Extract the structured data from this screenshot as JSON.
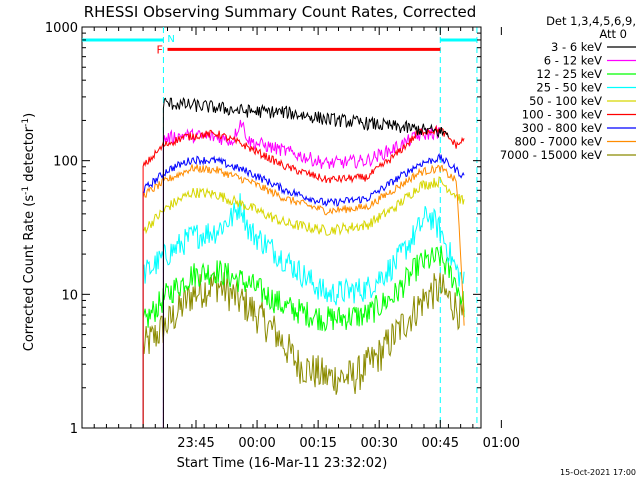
{
  "chart_data": {
    "type": "line",
    "title": "RHESSI Observing Summary Count Rates, Corrected",
    "xlabel": "Start Time (16-Mar-11 23:32:02)",
    "ylabel_main": "Corrected Count Rate (s",
    "ylabel_sup1": "-1",
    "ylabel_mid": " detector",
    "ylabel_sup2": "-1",
    "ylabel_end": ")",
    "y_scale": "log",
    "ylim": [
      1,
      1000
    ],
    "xlim_minutes": [
      -15,
      83
    ],
    "y_ticks": [
      {
        "value": 1,
        "label": "1"
      },
      {
        "value": 10,
        "label": "10"
      },
      {
        "value": 100,
        "label": "100"
      },
      {
        "value": 1000,
        "label": "1000"
      }
    ],
    "x_ticks": [
      {
        "minute": 13,
        "label": "23:45"
      },
      {
        "minute": 28,
        "label": "00:00"
      },
      {
        "minute": 43,
        "label": "00:15"
      },
      {
        "minute": 58,
        "label": "00:30"
      },
      {
        "minute": 73,
        "label": "00:45"
      },
      {
        "minute": 88,
        "label": "01:00"
      }
    ],
    "legend": {
      "position": "right",
      "header1": "Det 1,3,4,5,6,9,",
      "header2": "Att 0",
      "entries": [
        {
          "label": "3 - 6 keV",
          "color": "#000000"
        },
        {
          "label": "6 - 12 keV",
          "color": "#ff00ff"
        },
        {
          "label": "12 - 25 keV",
          "color": "#00ff00"
        },
        {
          "label": "25 - 50 keV",
          "color": "#00ffff"
        },
        {
          "label": "50 - 100 keV",
          "color": "#d6d600"
        },
        {
          "label": "100 - 300 keV",
          "color": "#ff0000"
        },
        {
          "label": "300 - 800 keV",
          "color": "#0000ff"
        },
        {
          "label": "800 - 7000 keV",
          "color": "#ff8c00"
        },
        {
          "label": "7000 - 15000 keV",
          "color": "#8b8b00"
        }
      ]
    },
    "night_marker": {
      "label": "N",
      "color": "#00ffff",
      "bars": [
        [
          -15,
          5
        ],
        [
          73,
          82
        ]
      ],
      "level": 800,
      "dashed_minutes": [
        5,
        73,
        82
      ]
    },
    "flare_marker": {
      "label": "F",
      "color": "#ff0000",
      "start": 6,
      "end": 73,
      "level": 680
    },
    "series": [
      {
        "name": "3 - 6 keV",
        "color": "#000000",
        "start": 5,
        "end": 75,
        "noise": 0.05,
        "points": [
          [
            5,
            270
          ],
          [
            15,
            255
          ],
          [
            25,
            235
          ],
          [
            35,
            230
          ],
          [
            45,
            205
          ],
          [
            55,
            190
          ],
          [
            65,
            175
          ],
          [
            70,
            168
          ],
          [
            75,
            160
          ]
        ]
      },
      {
        "name": "100 - 300 keV",
        "color": "#ff0000",
        "start": 0,
        "end": 79,
        "noise": 0.03,
        "points": [
          [
            0,
            90
          ],
          [
            5,
            130
          ],
          [
            10,
            150
          ],
          [
            18,
            160
          ],
          [
            25,
            130
          ],
          [
            35,
            90
          ],
          [
            45,
            72
          ],
          [
            55,
            75
          ],
          [
            62,
            110
          ],
          [
            68,
            165
          ],
          [
            73,
            170
          ],
          [
            77,
            130
          ],
          [
            79,
            145
          ]
        ]
      },
      {
        "name": "6 - 12 keV",
        "color": "#ff00ff",
        "start": 5,
        "end": 73,
        "noise": 0.05,
        "points": [
          [
            5,
            145
          ],
          [
            10,
            155
          ],
          [
            18,
            150
          ],
          [
            22,
            140
          ],
          [
            24,
            200
          ],
          [
            26,
            140
          ],
          [
            35,
            118
          ],
          [
            45,
            95
          ],
          [
            55,
            100
          ],
          [
            62,
            125
          ],
          [
            68,
            155
          ],
          [
            73,
            165
          ]
        ]
      },
      {
        "name": "300 - 800 keV",
        "color": "#0000ff",
        "start": 0,
        "end": 79,
        "noise": 0.03,
        "points": [
          [
            0,
            60
          ],
          [
            6,
            85
          ],
          [
            12,
            102
          ],
          [
            18,
            100
          ],
          [
            26,
            82
          ],
          [
            35,
            60
          ],
          [
            45,
            48
          ],
          [
            55,
            52
          ],
          [
            62,
            72
          ],
          [
            68,
            95
          ],
          [
            73,
            105
          ],
          [
            77,
            85
          ],
          [
            79,
            75
          ]
        ]
      },
      {
        "name": "800 - 7000 keV",
        "color": "#ff8c00",
        "start": 0,
        "end": 79,
        "noise": 0.03,
        "points": [
          [
            0,
            55
          ],
          [
            6,
            72
          ],
          [
            12,
            88
          ],
          [
            18,
            85
          ],
          [
            26,
            70
          ],
          [
            35,
            52
          ],
          [
            45,
            42
          ],
          [
            55,
            45
          ],
          [
            62,
            62
          ],
          [
            68,
            82
          ],
          [
            73,
            88
          ],
          [
            77,
            70
          ],
          [
            79,
            5
          ]
        ]
      },
      {
        "name": "50 - 100 keV",
        "color": "#d6d600",
        "start": 0,
        "end": 79,
        "noise": 0.04,
        "points": [
          [
            0,
            30
          ],
          [
            6,
            45
          ],
          [
            12,
            58
          ],
          [
            18,
            56
          ],
          [
            26,
            45
          ],
          [
            35,
            34
          ],
          [
            45,
            30
          ],
          [
            55,
            33
          ],
          [
            62,
            45
          ],
          [
            68,
            65
          ],
          [
            73,
            70
          ],
          [
            77,
            55
          ],
          [
            79,
            48
          ]
        ]
      },
      {
        "name": "25 - 50 keV",
        "color": "#00ffff",
        "start": 0,
        "end": 79,
        "noise": 0.1,
        "points": [
          [
            0,
            14
          ],
          [
            6,
            20
          ],
          [
            12,
            27
          ],
          [
            18,
            30
          ],
          [
            22,
            38
          ],
          [
            24,
            48
          ],
          [
            26,
            30
          ],
          [
            35,
            18
          ],
          [
            45,
            10
          ],
          [
            55,
            11
          ],
          [
            62,
            17
          ],
          [
            68,
            32
          ],
          [
            70,
            40
          ],
          [
            73,
            30
          ],
          [
            77,
            15
          ],
          [
            79,
            12
          ]
        ]
      },
      {
        "name": "12 - 25 keV",
        "color": "#00ff00",
        "start": 0,
        "end": 79,
        "noise": 0.1,
        "points": [
          [
            0,
            6
          ],
          [
            6,
            10
          ],
          [
            12,
            14
          ],
          [
            18,
            15
          ],
          [
            26,
            12
          ],
          [
            35,
            8
          ],
          [
            45,
            6.5
          ],
          [
            55,
            7
          ],
          [
            62,
            10
          ],
          [
            68,
            17
          ],
          [
            73,
            19
          ],
          [
            77,
            12
          ],
          [
            79,
            8
          ]
        ]
      },
      {
        "name": "7000 - 15000 keV",
        "color": "#8b8b00",
        "start": 0,
        "end": 79,
        "noise": 0.14,
        "points": [
          [
            0,
            4
          ],
          [
            6,
            6
          ],
          [
            12,
            10
          ],
          [
            18,
            12
          ],
          [
            26,
            8
          ],
          [
            33,
            5
          ],
          [
            38,
            3
          ],
          [
            45,
            2.4
          ],
          [
            52,
            2.4
          ],
          [
            58,
            3.5
          ],
          [
            64,
            6
          ],
          [
            70,
            10
          ],
          [
            73,
            11
          ],
          [
            77,
            8
          ],
          [
            79,
            6
          ]
        ]
      }
    ]
  },
  "footer_date": "15-Oct-2021 17:00"
}
